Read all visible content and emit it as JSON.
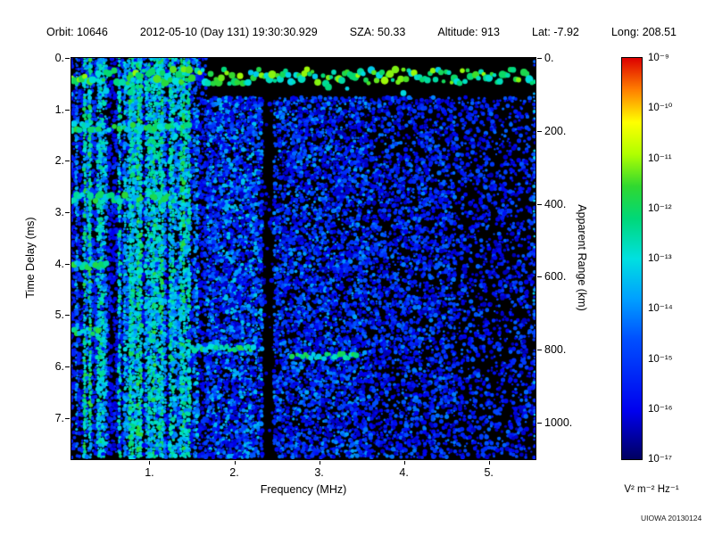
{
  "header": {
    "fields": [
      {
        "label": "Orbit:",
        "value": "10646"
      },
      {
        "label": "",
        "value": "2012-05-10 (Day 131) 19:30:30.929"
      },
      {
        "label": "SZA:",
        "value": "50.33"
      },
      {
        "label": "Altitude:",
        "value": "913"
      },
      {
        "label": "Lat:",
        "value": "-7.92"
      },
      {
        "label": "Long:",
        "value": "208.51"
      }
    ]
  },
  "footer": {
    "credit": "UIOWA 20130124"
  },
  "chart_data": {
    "type": "heatmap",
    "xlabel": "Frequency (MHz)",
    "ylabel_left": "Time Delay (ms)",
    "ylabel_right": "Apparent Range (km)",
    "x_axis": {
      "unit": "MHz",
      "min": 0.08,
      "max": 5.55,
      "ticks": [
        {
          "v": 1,
          "label": "1."
        },
        {
          "v": 2,
          "label": "2."
        },
        {
          "v": 3,
          "label": "3."
        },
        {
          "v": 4,
          "label": "4."
        },
        {
          "v": 5,
          "label": "5."
        }
      ]
    },
    "y_axis_left": {
      "unit": "ms",
      "min": 0,
      "max": 7.8,
      "ticks": [
        {
          "v": 0,
          "label": "0."
        },
        {
          "v": 1,
          "label": "1."
        },
        {
          "v": 2,
          "label": "2."
        },
        {
          "v": 3,
          "label": "3."
        },
        {
          "v": 4,
          "label": "4."
        },
        {
          "v": 5,
          "label": "5."
        },
        {
          "v": 6,
          "label": "6."
        },
        {
          "v": 7,
          "label": "7."
        }
      ]
    },
    "y_axis_right": {
      "unit": "km",
      "min": 0,
      "max": 1100,
      "ticks": [
        {
          "v": 0,
          "label": "0."
        },
        {
          "v": 200,
          "label": "200."
        },
        {
          "v": 400,
          "label": "400."
        },
        {
          "v": 600,
          "label": "600."
        },
        {
          "v": 800,
          "label": "800."
        },
        {
          "v": 1000,
          "label": "1000."
        }
      ]
    },
    "colorbar": {
      "scale": "log",
      "unit": "V² m⁻² Hz⁻¹",
      "tick_labels": [
        "10⁻⁹",
        "10⁻¹⁰",
        "10⁻¹¹",
        "10⁻¹²",
        "10⁻¹³",
        "10⁻¹⁴",
        "10⁻¹⁵",
        "10⁻¹⁶",
        "10⁻¹⁷"
      ],
      "colormap_stops": [
        {
          "p": 0.0,
          "c": "#000060"
        },
        {
          "p": 0.12,
          "c": "#0000ee"
        },
        {
          "p": 0.3,
          "c": "#0050ff"
        },
        {
          "p": 0.4,
          "c": "#00a0ff"
        },
        {
          "p": 0.5,
          "c": "#00e0e0"
        },
        {
          "p": 0.6,
          "c": "#00d878"
        },
        {
          "p": 0.68,
          "c": "#30d830"
        },
        {
          "p": 0.76,
          "c": "#b0ff00"
        },
        {
          "p": 0.84,
          "c": "#ffff00"
        },
        {
          "p": 0.92,
          "c": "#ff8000"
        },
        {
          "p": 1.0,
          "c": "#dd0000"
        }
      ]
    },
    "spectrogram": {
      "background": "#000000",
      "seed": 20130124,
      "stripe_region_max_mhz": 1.68,
      "strong_stripe_bands_mhz": [
        [
          0.08,
          0.5
        ],
        [
          0.62,
          0.7
        ],
        [
          0.95,
          1.12
        ],
        [
          1.25,
          1.45
        ]
      ],
      "quiet_gap_mhz": [
        2.33,
        2.47
      ],
      "noise_regions": [
        {
          "f": [
            1.68,
            2.33
          ],
          "density": 0.78,
          "max_t": 0.4
        },
        {
          "f": [
            2.47,
            3.6
          ],
          "density": 0.62,
          "max_t": 0.34
        },
        {
          "f": [
            3.6,
            4.6
          ],
          "density": 0.48,
          "max_t": 0.3
        },
        {
          "f": [
            4.6,
            5.55
          ],
          "density": 0.32,
          "max_t": 0.27
        }
      ],
      "noise_start_ms": 0.75,
      "top_echo_band_ms": [
        0.22,
        0.5
      ],
      "cyclotron_echoes": [
        {
          "delay_ms": 1.35,
          "extent_mhz": 1.5
        },
        {
          "delay_ms": 2.72,
          "extent_mhz": 1.28
        },
        {
          "delay_ms": 4.02,
          "extent_mhz": 0.5
        },
        {
          "delay_ms": 5.32,
          "extent_mhz": 0.42
        }
      ],
      "ionosphere_trace": [
        {
          "f_mhz": [
            1.5,
            2.25
          ],
          "delay_ms": 5.65
        },
        {
          "f_mhz": [
            2.68,
            3.45
          ],
          "delay_ms": 5.8
        }
      ],
      "right_edge_line": true
    }
  }
}
